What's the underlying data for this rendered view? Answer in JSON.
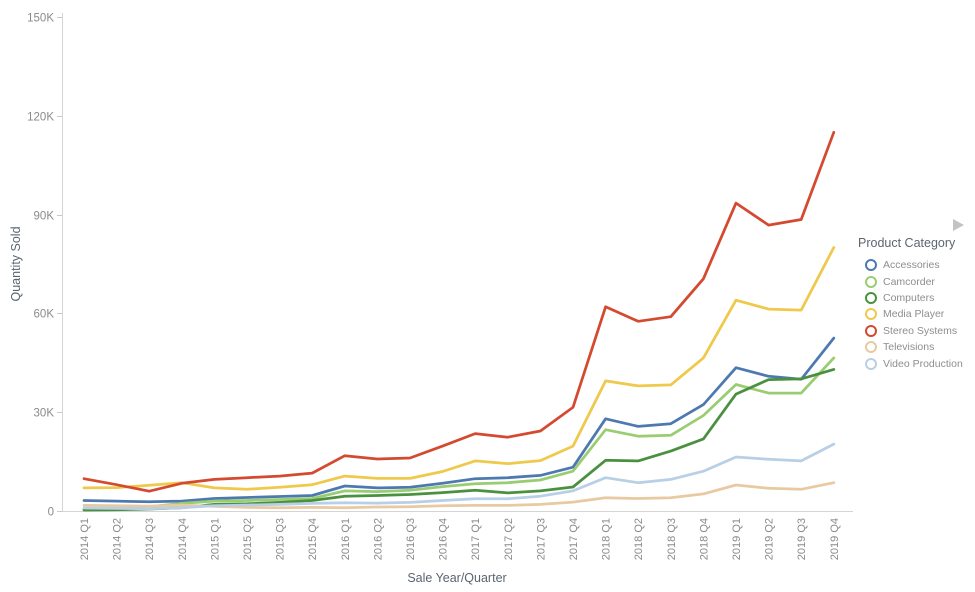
{
  "chart_data": {
    "type": "line",
    "title": "",
    "xlabel": "Sale Year/Quarter",
    "ylabel": "Quantity Sold",
    "values_unit": "thousands",
    "grid": false,
    "x_categories": [
      "2014 Q1",
      "2014 Q2",
      "2014 Q3",
      "2014 Q4",
      "2015 Q1",
      "2015 Q2",
      "2015 Q3",
      "2015 Q4",
      "2016 Q1",
      "2016 Q2",
      "2016 Q3",
      "2016 Q4",
      "2017 Q1",
      "2017 Q2",
      "2017 Q3",
      "2017 Q4",
      "2018 Q1",
      "2018 Q2",
      "2018 Q3",
      "2018 Q4",
      "2019 Q1",
      "2019 Q2",
      "2019 Q3",
      "2019 Q4"
    ],
    "y_axis": {
      "min": 0,
      "max": 150,
      "ticks": [
        {
          "value": 0,
          "label": "0"
        },
        {
          "value": 30,
          "label": "30K"
        },
        {
          "value": 60,
          "label": "60K"
        },
        {
          "value": 90,
          "label": "90K"
        },
        {
          "value": 120,
          "label": "120K"
        },
        {
          "value": 150,
          "label": "150K"
        }
      ]
    },
    "legend": {
      "title": "Product Category",
      "position": "right"
    },
    "series": [
      {
        "name": "Accessories",
        "color": "#4e79b0",
        "values": [
          3.2,
          3.0,
          2.8,
          3.0,
          3.8,
          4.1,
          4.4,
          4.7,
          7.6,
          7.0,
          7.2,
          8.4,
          9.8,
          10.1,
          10.8,
          13.3,
          28.0,
          25.7,
          26.5,
          32.3,
          43.5,
          40.9,
          40.0,
          52.5
        ]
      },
      {
        "name": "Camcorder",
        "color": "#9acd72",
        "values": [
          0.6,
          0.9,
          1.3,
          2.3,
          3.0,
          3.2,
          3.5,
          3.8,
          6.1,
          5.9,
          6.3,
          7.4,
          8.3,
          8.6,
          9.4,
          12.1,
          24.7,
          22.7,
          23.0,
          29.0,
          38.4,
          35.8,
          35.8,
          46.5
        ]
      },
      {
        "name": "Computers",
        "color": "#4a913f",
        "values": [
          0.3,
          0.4,
          0.6,
          1.0,
          2.0,
          2.2,
          2.6,
          3.2,
          4.5,
          4.7,
          5.0,
          5.6,
          6.3,
          5.5,
          6.1,
          7.3,
          15.4,
          15.2,
          18.2,
          21.9,
          35.5,
          39.9,
          40.1,
          43.0
        ]
      },
      {
        "name": "Media Player",
        "color": "#eec94b",
        "values": [
          7.0,
          7.1,
          7.8,
          8.6,
          7.0,
          6.6,
          7.2,
          8.0,
          10.6,
          9.9,
          9.9,
          12.0,
          15.2,
          14.4,
          15.3,
          19.7,
          39.5,
          38.0,
          38.3,
          46.5,
          64.0,
          61.3,
          61.0,
          80.0
        ]
      },
      {
        "name": "Stereo Systems",
        "color": "#d44a30",
        "values": [
          9.8,
          8.0,
          6.0,
          8.4,
          9.6,
          10.1,
          10.6,
          11.5,
          16.8,
          15.8,
          16.1,
          19.7,
          23.5,
          22.4,
          24.3,
          31.5,
          62.0,
          57.6,
          59.0,
          70.5,
          93.5,
          86.8,
          88.5,
          115.0
        ]
      },
      {
        "name": "Televisions",
        "color": "#e9c9a1",
        "values": [
          1.7,
          1.6,
          1.5,
          1.8,
          1.4,
          1.1,
          1.0,
          1.1,
          1.0,
          1.2,
          1.3,
          1.6,
          1.7,
          1.7,
          2.0,
          2.7,
          4.0,
          3.8,
          4.0,
          5.2,
          7.9,
          6.9,
          6.6,
          8.6
        ]
      },
      {
        "name": "Video Production",
        "color": "#b8cfe5",
        "values": [
          0.9,
          0.8,
          0.7,
          1.0,
          1.6,
          1.8,
          2.0,
          2.3,
          2.5,
          2.4,
          2.6,
          3.2,
          3.7,
          3.7,
          4.5,
          6.1,
          10.1,
          8.6,
          9.6,
          12.1,
          16.4,
          15.7,
          15.2,
          20.3
        ]
      }
    ]
  },
  "icons": {
    "legend_scroll_arrow": "right-triangle"
  }
}
